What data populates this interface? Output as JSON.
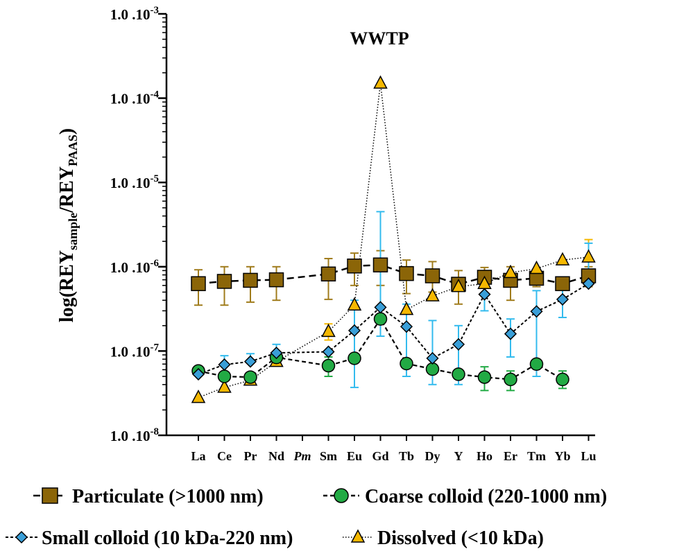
{
  "chart_data": {
    "type": "scatter",
    "title": "WWTP",
    "ylabel": {
      "main": "log(REY",
      "sub1": "sample",
      "mid": "/REY",
      "sub2": "PAAS",
      "end": ")"
    },
    "yscale": "log",
    "ylim": [
      1e-08,
      0.001
    ],
    "yticks": [
      {
        "label": "1.0 .10",
        "exp": "-3",
        "value": 0.001
      },
      {
        "label": "1.0 .10",
        "exp": "-4",
        "value": 0.0001
      },
      {
        "label": "1.0 .10",
        "exp": "-5",
        "value": 1e-05
      },
      {
        "label": "1.0 .10",
        "exp": "-6",
        "value": 1e-06
      },
      {
        "label": "1.0 .10",
        "exp": "-7",
        "value": 1e-07
      },
      {
        "label": "1.0 .10",
        "exp": "-8",
        "value": 1e-08
      }
    ],
    "categories": [
      "La",
      "Ce",
      "Pr",
      "Nd",
      "Pm",
      "Sm",
      "Eu",
      "Gd",
      "Tb",
      "Dy",
      "Y",
      "Ho",
      "Er",
      "Tm",
      "Yb",
      "Lu"
    ],
    "italic_categories": [
      "Pm"
    ],
    "grid": false,
    "legend_position": "bottom",
    "series": [
      {
        "name": "Particulate (>1000 nm)",
        "marker": "square",
        "color": "#8b6508",
        "line_style": "dashed-long",
        "error_color": "#a07c1c",
        "values": [
          6.3e-07,
          6.7e-07,
          6.9e-07,
          7e-07,
          null,
          8.2e-07,
          1.02e-06,
          1.05e-06,
          8.3e-07,
          7.8e-07,
          6.2e-07,
          7.5e-07,
          6.9e-07,
          7.3e-07,
          6.3e-07,
          7.8e-07
        ],
        "err_low": [
          3.5e-07,
          3.5e-07,
          3.8e-07,
          4e-07,
          null,
          4.1e-07,
          6e-07,
          6e-07,
          4.8e-07,
          5e-07,
          3.6e-07,
          5.8e-07,
          4e-07,
          5.8e-07,
          null,
          5.8e-07
        ],
        "err_high": [
          9.2e-07,
          1e-06,
          1e-06,
          1e-06,
          null,
          1.25e-06,
          1.45e-06,
          1.55e-06,
          1.2e-06,
          1.15e-06,
          9e-07,
          9.8e-07,
          1e-06,
          8.5e-07,
          null,
          1e-06
        ]
      },
      {
        "name": "Coarse colloid (220-1000 nm)",
        "marker": "circle",
        "color": "#22aa44",
        "line_style": "dashed",
        "error_color": "#22aa44",
        "values": [
          5.8e-08,
          5e-08,
          4.9e-08,
          8.4e-08,
          null,
          6.7e-08,
          8.2e-08,
          2.4e-07,
          7.1e-08,
          6.1e-08,
          5.3e-08,
          4.9e-08,
          4.6e-08,
          7e-08,
          4.6e-08,
          null
        ],
        "err_low": [
          null,
          null,
          null,
          null,
          null,
          5e-08,
          null,
          null,
          null,
          null,
          null,
          3.4e-08,
          3.4e-08,
          null,
          3.6e-08,
          null
        ],
        "err_high": [
          null,
          null,
          null,
          null,
          null,
          8.5e-08,
          null,
          null,
          null,
          null,
          null,
          6.5e-08,
          5.8e-08,
          null,
          5.8e-08,
          null
        ]
      },
      {
        "name": "Small colloid (10 kDa-220 nm)",
        "marker": "diamond",
        "color": "#3a9fd8",
        "line_style": "dashed-short",
        "error_color": "#33bbee",
        "values": [
          5.3e-08,
          6.9e-08,
          7.5e-08,
          9.5e-08,
          null,
          9.8e-08,
          1.75e-07,
          3.3e-07,
          1.95e-07,
          8.2e-08,
          1.2e-07,
          4.7e-07,
          1.6e-07,
          2.95e-07,
          4.1e-07,
          6.3e-07
        ],
        "err_low": [
          null,
          null,
          null,
          null,
          null,
          null,
          3.7e-08,
          1.5e-07,
          5e-08,
          4e-08,
          4e-08,
          3e-07,
          8.5e-08,
          5e-08,
          2.5e-07,
          null
        ],
        "err_high": [
          null,
          8.8e-08,
          9.3e-08,
          1.2e-07,
          null,
          null,
          4e-07,
          4.5e-06,
          3.6e-07,
          2.3e-07,
          2e-07,
          6e-07,
          2.4e-07,
          5.2e-07,
          5.3e-07,
          1.9e-06
        ]
      },
      {
        "name": "Dissolved (<10 kDa)",
        "marker": "triangle",
        "color": "#f5b800",
        "line_style": "dotted",
        "error_color": "#f5b800",
        "values": [
          2.8e-08,
          3.7e-08,
          4.5e-08,
          7.5e-08,
          null,
          1.7e-07,
          3.5e-07,
          0.00015,
          3.1e-07,
          4.5e-07,
          5.8e-07,
          6.3e-07,
          8.5e-07,
          9.5e-07,
          1.2e-06,
          1.3e-06
        ],
        "err_low": [
          null,
          null,
          null,
          null,
          null,
          1.35e-07,
          null,
          null,
          null,
          null,
          null,
          null,
          null,
          null,
          null,
          null
        ],
        "err_high": [
          null,
          null,
          null,
          null,
          null,
          2.1e-07,
          null,
          null,
          null,
          null,
          null,
          null,
          null,
          null,
          null,
          2.1e-06
        ]
      }
    ]
  }
}
